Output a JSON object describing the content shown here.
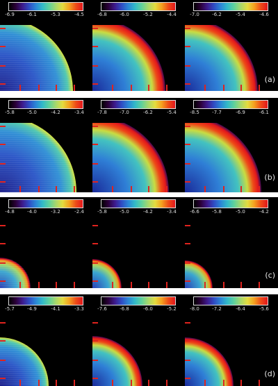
{
  "colormap": [
    "#000000",
    "#2b0038",
    "#3d1a8c",
    "#2f4cc4",
    "#2b86d6",
    "#32b9c8",
    "#5fd19c",
    "#a8d86b",
    "#e3dc3f",
    "#f4a01f",
    "#ee4b18",
    "#e2171c"
  ],
  "rows": [
    {
      "label": "(a)",
      "panels": [
        {
          "ticks": [
            "-6.9",
            "-6.1",
            "-5.3",
            "-4.5"
          ]
        },
        {
          "ticks": [
            "-6.8",
            "-6.0",
            "-5.2",
            "-4.4"
          ]
        },
        {
          "ticks": [
            "-7.0",
            "-6.2",
            "-5.4",
            "-4.6"
          ]
        }
      ]
    },
    {
      "label": "(b)",
      "panels": [
        {
          "ticks": [
            "-5.8",
            "-5.0",
            "-4.2",
            "-3.4"
          ]
        },
        {
          "ticks": [
            "-7.8",
            "-7.0",
            "-6.2",
            "-5.4"
          ]
        },
        {
          "ticks": [
            "-8.5",
            "-7.7",
            "-6.9",
            "-6.1"
          ]
        }
      ]
    },
    {
      "label": "(c)",
      "panels": [
        {
          "ticks": [
            "-4.8",
            "-4.0",
            "-3.2",
            "-2.4"
          ]
        },
        {
          "ticks": [
            "-5.8",
            "-5.0",
            "-4.2",
            "-3.4"
          ]
        },
        {
          "ticks": [
            "-6.6",
            "-5.8",
            "-5.0",
            "-4.2"
          ]
        }
      ]
    },
    {
      "label": "(d)",
      "panels": [
        {
          "ticks": [
            "-5.7",
            "-4.9",
            "-4.1",
            "-3.3"
          ]
        },
        {
          "ticks": [
            "-7.6",
            "-6.8",
            "-6.0",
            "-5.2"
          ]
        },
        {
          "ticks": [
            "-8.0",
            "-7.2",
            "-6.4",
            "-5.6"
          ]
        }
      ]
    }
  ]
}
